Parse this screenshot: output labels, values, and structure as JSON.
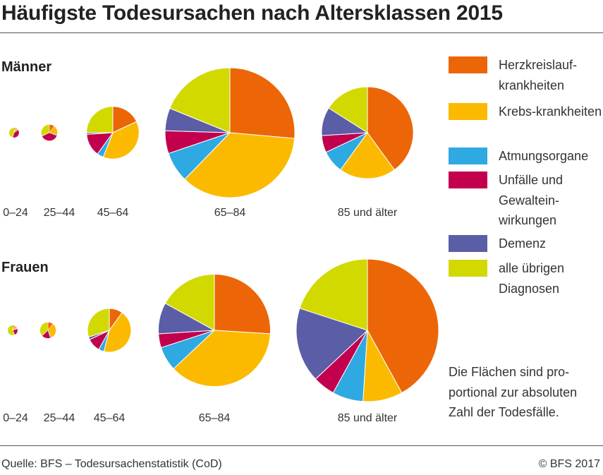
{
  "title": "Häufigste Todesursachen nach Altersklassen 2015",
  "legend": [
    {
      "key": "herz",
      "label": "Herzkreislauf-krankheiten",
      "color": "#EC6608"
    },
    {
      "key": "krebs",
      "label": "Krebs-krankheiten",
      "color": "#FBBA00"
    },
    {
      "key": "atmung",
      "label": "Atmungsorgane",
      "color": "#2FA9E1"
    },
    {
      "key": "unfall",
      "label": "Unfälle und Gewaltein-wirkungen",
      "color": "#C2004D"
    },
    {
      "key": "demenz",
      "label": "Demenz",
      "color": "#5B5EA6"
    },
    {
      "key": "uebrige",
      "label": "alle übrigen Diagnosen",
      "color": "#D2D900"
    }
  ],
  "note": "Die Flächen sind pro-portional zur absoluten Zahl der Todesfälle.",
  "footer": {
    "source": "Quelle: BFS – Todesursachenstatistik (CoD)",
    "copyright": "© BFS 2017"
  },
  "chart_data": [
    {
      "type": "pie",
      "group": "Männer",
      "categories": [
        "Herzkreislaufkrankheiten",
        "Krebskrankheiten",
        "Atmungsorgane",
        "Unfälle und Gewalteinwirkungen",
        "Demenz",
        "alle übrigen Diagnosen"
      ],
      "pies": [
        {
          "label": "0–24",
          "relative_size": 0.006,
          "shares": [
            5,
            8,
            2,
            40,
            1,
            44
          ]
        },
        {
          "label": "25–44",
          "relative_size": 0.016,
          "shares": [
            10,
            19,
            2,
            37,
            1,
            31
          ]
        },
        {
          "label": "45–64",
          "relative_size": 0.164,
          "shares": [
            18,
            38,
            4,
            14,
            1,
            25
          ]
        },
        {
          "label": "65–84",
          "relative_size": 1.0,
          "shares": [
            28,
            38,
            8,
            6,
            6,
            20
          ]
        },
        {
          "label": "85 und älter",
          "relative_size": 0.5,
          "shares": [
            40,
            20,
            8,
            6,
            10,
            16
          ]
        }
      ]
    },
    {
      "type": "pie",
      "group": "Frauen",
      "categories": [
        "Herzkreislaufkrankheiten",
        "Krebskrankheiten",
        "Atmungsorgane",
        "Unfälle und Gewalteinwirkungen",
        "Demenz",
        "alle übrigen Diagnosen"
      ],
      "pies": [
        {
          "label": "0–24",
          "relative_size": 0.005,
          "shares": [
            6,
            12,
            2,
            23,
            1,
            56
          ]
        },
        {
          "label": "25–44",
          "relative_size": 0.013,
          "shares": [
            10,
            33,
            2,
            18,
            1,
            36
          ]
        },
        {
          "label": "45–64",
          "relative_size": 0.094,
          "shares": [
            10,
            44,
            4,
            10,
            2,
            30
          ]
        },
        {
          "label": "65–84",
          "relative_size": 0.62,
          "shares": [
            26,
            37,
            7,
            4,
            9,
            17
          ]
        },
        {
          "label": "85 und älter",
          "relative_size": 1.0,
          "shares": [
            42,
            9,
            7,
            5,
            17,
            20
          ]
        }
      ]
    }
  ]
}
